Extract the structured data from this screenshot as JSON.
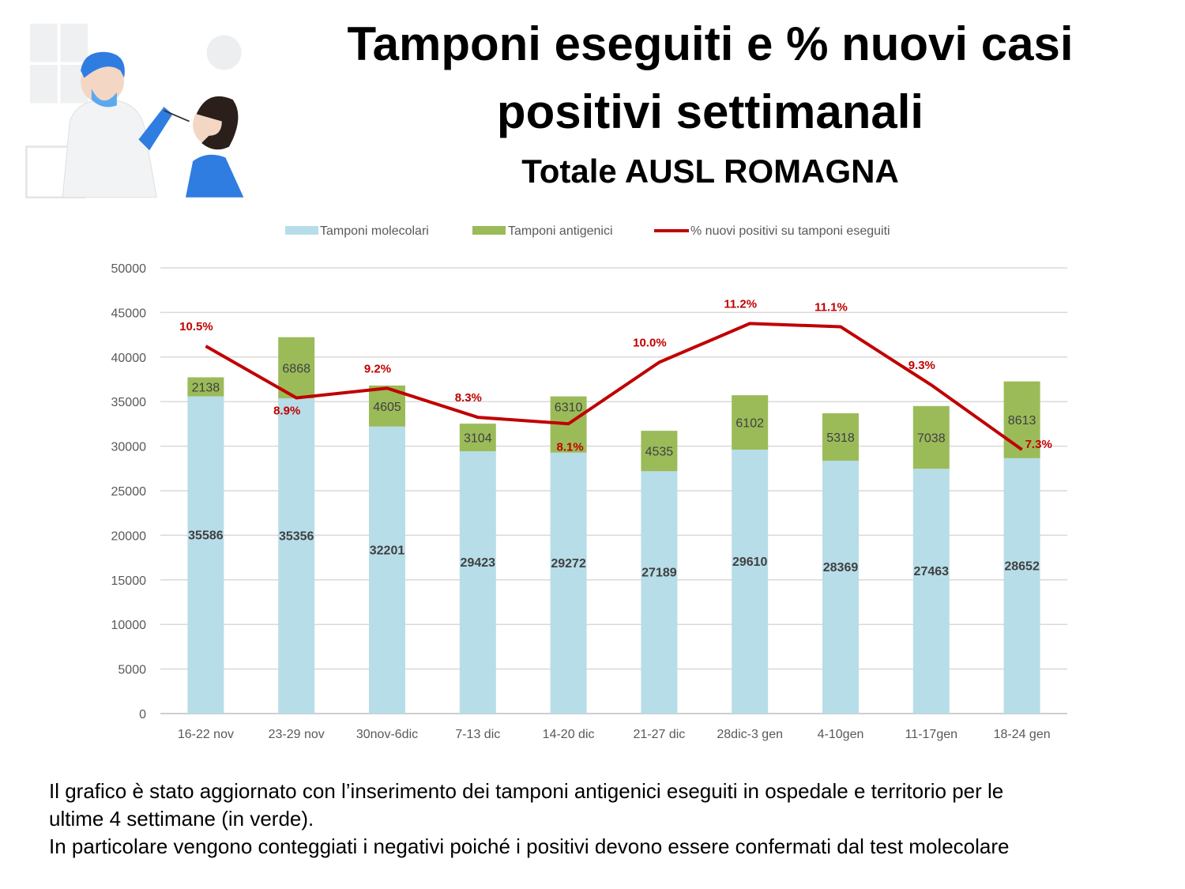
{
  "header": {
    "title_line1": "Tamponi eseguiti e % nuovi casi",
    "title_line2": "positivi settimanali",
    "subtitle": "Totale AUSL ROMAGNA"
  },
  "chart_data": {
    "type": "bar",
    "stacked": true,
    "title": "Tamponi eseguiti e % nuovi casi positivi settimanali - Totale AUSL ROMAGNA",
    "categories": [
      "16-22 nov",
      "23-29 nov",
      "30nov-6dic",
      "7-13 dic",
      "14-20 dic",
      "21-27 dic",
      "28dic-3 gen",
      "4-10gen",
      "11-17gen",
      "18-24 gen"
    ],
    "series": [
      {
        "name": "Tamponi molecolari",
        "type": "bar",
        "color": "#b7dde8",
        "values": [
          35586,
          35356,
          32201,
          29423,
          29272,
          27189,
          29610,
          28369,
          27463,
          28652
        ]
      },
      {
        "name": "Tamponi antigenici",
        "type": "bar",
        "color": "#9bbb59",
        "values": [
          2138,
          6868,
          4605,
          3104,
          6310,
          4535,
          6102,
          5318,
          7038,
          8613
        ]
      },
      {
        "name": "% nuovi positivi su tamponi eseguiti",
        "type": "line",
        "axis": "secondary",
        "color": "#c00000",
        "values": [
          10.5,
          8.9,
          9.2,
          8.3,
          8.1,
          10.0,
          11.2,
          11.1,
          9.3,
          7.3
        ],
        "labels": [
          "10.5%",
          "8.9%",
          "9.2%",
          "8.3%",
          "8.1%",
          "10.0%",
          "11.2%",
          "11.1%",
          "9.3%",
          "7.3%"
        ]
      }
    ],
    "ylim": [
      0,
      50000
    ],
    "yticks": [
      0,
      5000,
      10000,
      15000,
      20000,
      25000,
      30000,
      35000,
      40000,
      45000,
      50000
    ],
    "y2lim": [
      -0.86,
      12.92
    ],
    "grid": true,
    "legend_position": "top",
    "xlabel": "",
    "ylabel": ""
  },
  "footer": {
    "line1": "Il grafico è stato aggiornato con l’inserimento dei tamponi antigenici eseguiti in ospedale e territorio per le",
    "line2": "ultime 4 settimane (in verde).",
    "line3": "In particolare vengono conteggiati i negativi poiché i positivi devono essere confermati dal test molecolare"
  }
}
